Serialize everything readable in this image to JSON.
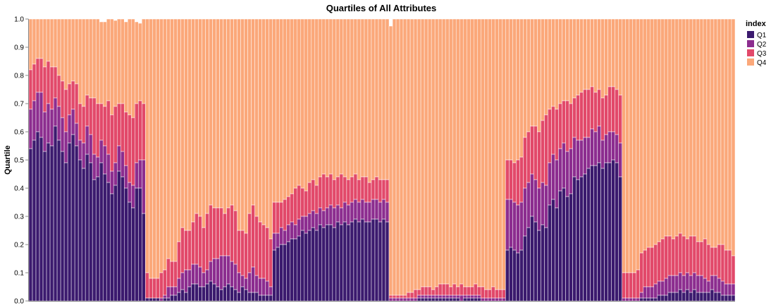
{
  "chart_data": {
    "type": "bar",
    "stacked": true,
    "normalized": true,
    "title": "Quartiles of All Attributes",
    "xlabel": "",
    "ylabel": "Quartile",
    "ylim": [
      0,
      1
    ],
    "yticks": [
      "0.0",
      "0.1",
      "0.2",
      "0.3",
      "0.4",
      "0.5",
      "0.6",
      "0.7",
      "0.8",
      "0.9",
      "1.0"
    ],
    "grid": false,
    "bar_count": 200,
    "legend": {
      "title": "index",
      "placement": "top-right"
    },
    "colors": {
      "Q1": "#3b1a6e",
      "Q2": "#8c2d8f",
      "Q3": "#e2496a",
      "Q4": "#fba87a"
    },
    "series": [
      {
        "name": "Q1",
        "segments": [
          [
            0.54,
            0.57,
            0.6,
            0.58,
            0.53,
            0.56,
            0.55,
            0.62,
            0.57,
            0.53,
            0.49,
            0.56,
            0.59,
            0.55,
            0.5,
            0.47,
            0.52,
            0.49,
            0.43,
            0.44,
            0.49,
            0.45,
            0.42,
            0.38,
            0.41,
            0.46,
            0.44,
            0.4,
            0.35,
            0.33,
            0.4,
            0.4,
            0.31
          ],
          [
            0.01,
            0.01,
            0.01,
            0.01,
            0.0,
            0.01,
            0.01,
            0.02,
            0.02,
            0.03,
            0.04,
            0.03,
            0.05,
            0.06,
            0.06,
            0.05,
            0.05,
            0.06,
            0.07,
            0.06,
            0.05,
            0.04,
            0.05,
            0.06,
            0.05,
            0.04,
            0.03,
            0.05,
            0.04,
            0.03,
            0.03,
            0.03,
            0.02,
            0.02,
            0.02,
            0.02
          ],
          [
            0.18,
            0.19,
            0.2,
            0.2,
            0.21,
            0.22,
            0.22,
            0.23,
            0.25,
            0.24,
            0.25,
            0.26,
            0.25,
            0.27,
            0.26,
            0.27,
            0.27,
            0.26,
            0.28,
            0.27,
            0.28,
            0.27,
            0.28,
            0.29,
            0.28,
            0.29,
            0.28,
            0.28,
            0.29,
            0.29,
            0.28,
            0.29,
            0.28
          ],
          [
            0.0,
            0.0,
            0.0,
            0.0,
            0.0,
            0.0,
            0.0,
            0.0,
            0.01,
            0.01,
            0.01,
            0.01,
            0.01,
            0.01,
            0.01,
            0.01,
            0.01,
            0.01,
            0.01,
            0.01,
            0.0,
            0.01,
            0.01,
            0.01,
            0.01,
            0.01,
            0.0,
            0.0,
            0.0,
            0.0,
            0.0,
            0.0,
            0.0
          ],
          [
            0.18,
            0.19,
            0.18,
            0.17,
            0.18,
            0.23,
            0.26,
            0.3,
            0.28,
            0.25,
            0.27,
            0.26,
            0.34,
            0.36,
            0.33,
            0.39,
            0.4,
            0.37,
            0.38,
            0.44,
            0.43,
            0.44,
            0.45,
            0.47,
            0.48,
            0.48,
            0.49,
            0.47,
            0.49,
            0.49,
            0.5,
            0.49,
            0.44
          ],
          [
            0.0,
            0.0,
            0.0,
            0.0,
            0.0,
            0.01,
            0.01,
            0.01,
            0.01,
            0.01,
            0.02,
            0.02,
            0.02,
            0.03,
            0.03,
            0.03,
            0.04,
            0.03,
            0.04,
            0.03,
            0.04,
            0.03,
            0.03,
            0.03,
            0.03,
            0.04,
            0.03,
            0.03,
            0.02,
            0.02,
            0.02,
            0.02,
            0.02,
            0.02
          ]
        ]
      },
      {
        "name": "Q2",
        "segments": [
          [
            0.68,
            0.71,
            0.74,
            0.74,
            0.67,
            0.7,
            0.68,
            0.72,
            0.69,
            0.65,
            0.6,
            0.66,
            0.68,
            0.63,
            0.57,
            0.56,
            0.62,
            0.59,
            0.52,
            0.51,
            0.57,
            0.55,
            0.52,
            0.46,
            0.49,
            0.55,
            0.53,
            0.48,
            0.42,
            0.41,
            0.49,
            0.5,
            0.5
          ],
          [
            0.01,
            0.01,
            0.01,
            0.01,
            0.01,
            0.02,
            0.05,
            0.05,
            0.05,
            0.08,
            0.1,
            0.11,
            0.11,
            0.13,
            0.13,
            0.12,
            0.1,
            0.11,
            0.14,
            0.15,
            0.15,
            0.16,
            0.16,
            0.16,
            0.14,
            0.13,
            0.1,
            0.09,
            0.08,
            0.1,
            0.12,
            0.09,
            0.08,
            0.08,
            0.07,
            0.05
          ],
          [
            0.24,
            0.24,
            0.26,
            0.25,
            0.27,
            0.28,
            0.27,
            0.29,
            0.3,
            0.3,
            0.31,
            0.32,
            0.31,
            0.33,
            0.32,
            0.33,
            0.34,
            0.33,
            0.34,
            0.33,
            0.35,
            0.34,
            0.35,
            0.36,
            0.35,
            0.36,
            0.35,
            0.35,
            0.36,
            0.36,
            0.35,
            0.36,
            0.35
          ],
          [
            0.01,
            0.01,
            0.01,
            0.01,
            0.01,
            0.01,
            0.01,
            0.01,
            0.02,
            0.02,
            0.02,
            0.02,
            0.02,
            0.02,
            0.02,
            0.02,
            0.02,
            0.02,
            0.02,
            0.02,
            0.02,
            0.02,
            0.02,
            0.02,
            0.02,
            0.02,
            0.01,
            0.01,
            0.01,
            0.01,
            0.01,
            0.01,
            0.01
          ],
          [
            0.36,
            0.36,
            0.35,
            0.34,
            0.35,
            0.4,
            0.42,
            0.45,
            0.43,
            0.4,
            0.42,
            0.41,
            0.49,
            0.52,
            0.5,
            0.54,
            0.56,
            0.53,
            0.54,
            0.58,
            0.57,
            0.57,
            0.58,
            0.58,
            0.61,
            0.6,
            0.62,
            0.57,
            0.59,
            0.6,
            0.6,
            0.59,
            0.56
          ],
          [
            0.01,
            0.01,
            0.01,
            0.01,
            0.01,
            0.03,
            0.05,
            0.05,
            0.05,
            0.06,
            0.07,
            0.07,
            0.08,
            0.09,
            0.09,
            0.09,
            0.1,
            0.09,
            0.1,
            0.09,
            0.1,
            0.09,
            0.09,
            0.08,
            0.07,
            0.09,
            0.09,
            0.08,
            0.07,
            0.06,
            0.06,
            0.06,
            0.06,
            0.05
          ]
        ]
      },
      {
        "name": "Q3",
        "segments": [
          [
            0.82,
            0.84,
            0.86,
            0.86,
            0.83,
            0.85,
            0.83,
            0.83,
            0.8,
            0.78,
            0.75,
            0.77,
            0.78,
            0.77,
            0.7,
            0.69,
            0.73,
            0.72,
            0.72,
            0.7,
            0.7,
            0.69,
            0.71,
            0.66,
            0.69,
            0.7,
            0.7,
            0.67,
            0.66,
            0.65,
            0.7,
            0.71,
            0.7
          ],
          [
            0.1,
            0.08,
            0.08,
            0.08,
            0.1,
            0.11,
            0.15,
            0.14,
            0.14,
            0.21,
            0.26,
            0.25,
            0.25,
            0.28,
            0.31,
            0.3,
            0.26,
            0.31,
            0.34,
            0.33,
            0.33,
            0.33,
            0.31,
            0.33,
            0.34,
            0.32,
            0.25,
            0.25,
            0.24,
            0.31,
            0.34,
            0.3,
            0.28,
            0.27,
            0.26,
            0.22
          ],
          [
            0.35,
            0.35,
            0.35,
            0.36,
            0.37,
            0.38,
            0.4,
            0.41,
            0.4,
            0.39,
            0.42,
            0.43,
            0.41,
            0.44,
            0.45,
            0.44,
            0.45,
            0.43,
            0.44,
            0.45,
            0.44,
            0.43,
            0.44,
            0.45,
            0.43,
            0.44,
            0.44,
            0.42,
            0.43,
            0.44,
            0.43,
            0.43,
            0.43
          ],
          [
            0.02,
            0.02,
            0.02,
            0.02,
            0.02,
            0.03,
            0.03,
            0.04,
            0.04,
            0.05,
            0.05,
            0.05,
            0.04,
            0.05,
            0.06,
            0.06,
            0.06,
            0.05,
            0.06,
            0.05,
            0.06,
            0.05,
            0.05,
            0.05,
            0.06,
            0.05,
            0.05,
            0.04,
            0.04,
            0.05,
            0.04,
            0.04,
            0.04
          ],
          [
            0.5,
            0.5,
            0.49,
            0.5,
            0.51,
            0.58,
            0.6,
            0.62,
            0.62,
            0.6,
            0.64,
            0.66,
            0.68,
            0.69,
            0.68,
            0.7,
            0.71,
            0.71,
            0.7,
            0.72,
            0.73,
            0.74,
            0.75,
            0.75,
            0.76,
            0.74,
            0.75,
            0.72,
            0.73,
            0.76,
            0.76,
            0.75,
            0.73
          ],
          [
            0.1,
            0.1,
            0.1,
            0.1,
            0.11,
            0.17,
            0.18,
            0.19,
            0.19,
            0.2,
            0.21,
            0.22,
            0.23,
            0.23,
            0.22,
            0.23,
            0.24,
            0.23,
            0.22,
            0.23,
            0.23,
            0.21,
            0.21,
            0.22,
            0.2,
            0.19,
            0.19,
            0.2,
            0.2,
            0.18,
            0.18,
            0.16,
            0.17,
            0.16,
            0.15,
            0.14
          ]
        ]
      },
      {
        "name": "Q4",
        "segments": []
      }
    ],
    "gaps": [
      {
        "bar": 20,
        "to": 0.99
      },
      {
        "bar": 21,
        "to": 0.99
      },
      {
        "bar": 24,
        "to": 0.995
      },
      {
        "bar": 27,
        "to": 0.99
      },
      {
        "bar": 30,
        "to": 0.99
      },
      {
        "bar": 31,
        "to": 0.985
      },
      {
        "bar": 102,
        "to": 0.975
      }
    ]
  }
}
